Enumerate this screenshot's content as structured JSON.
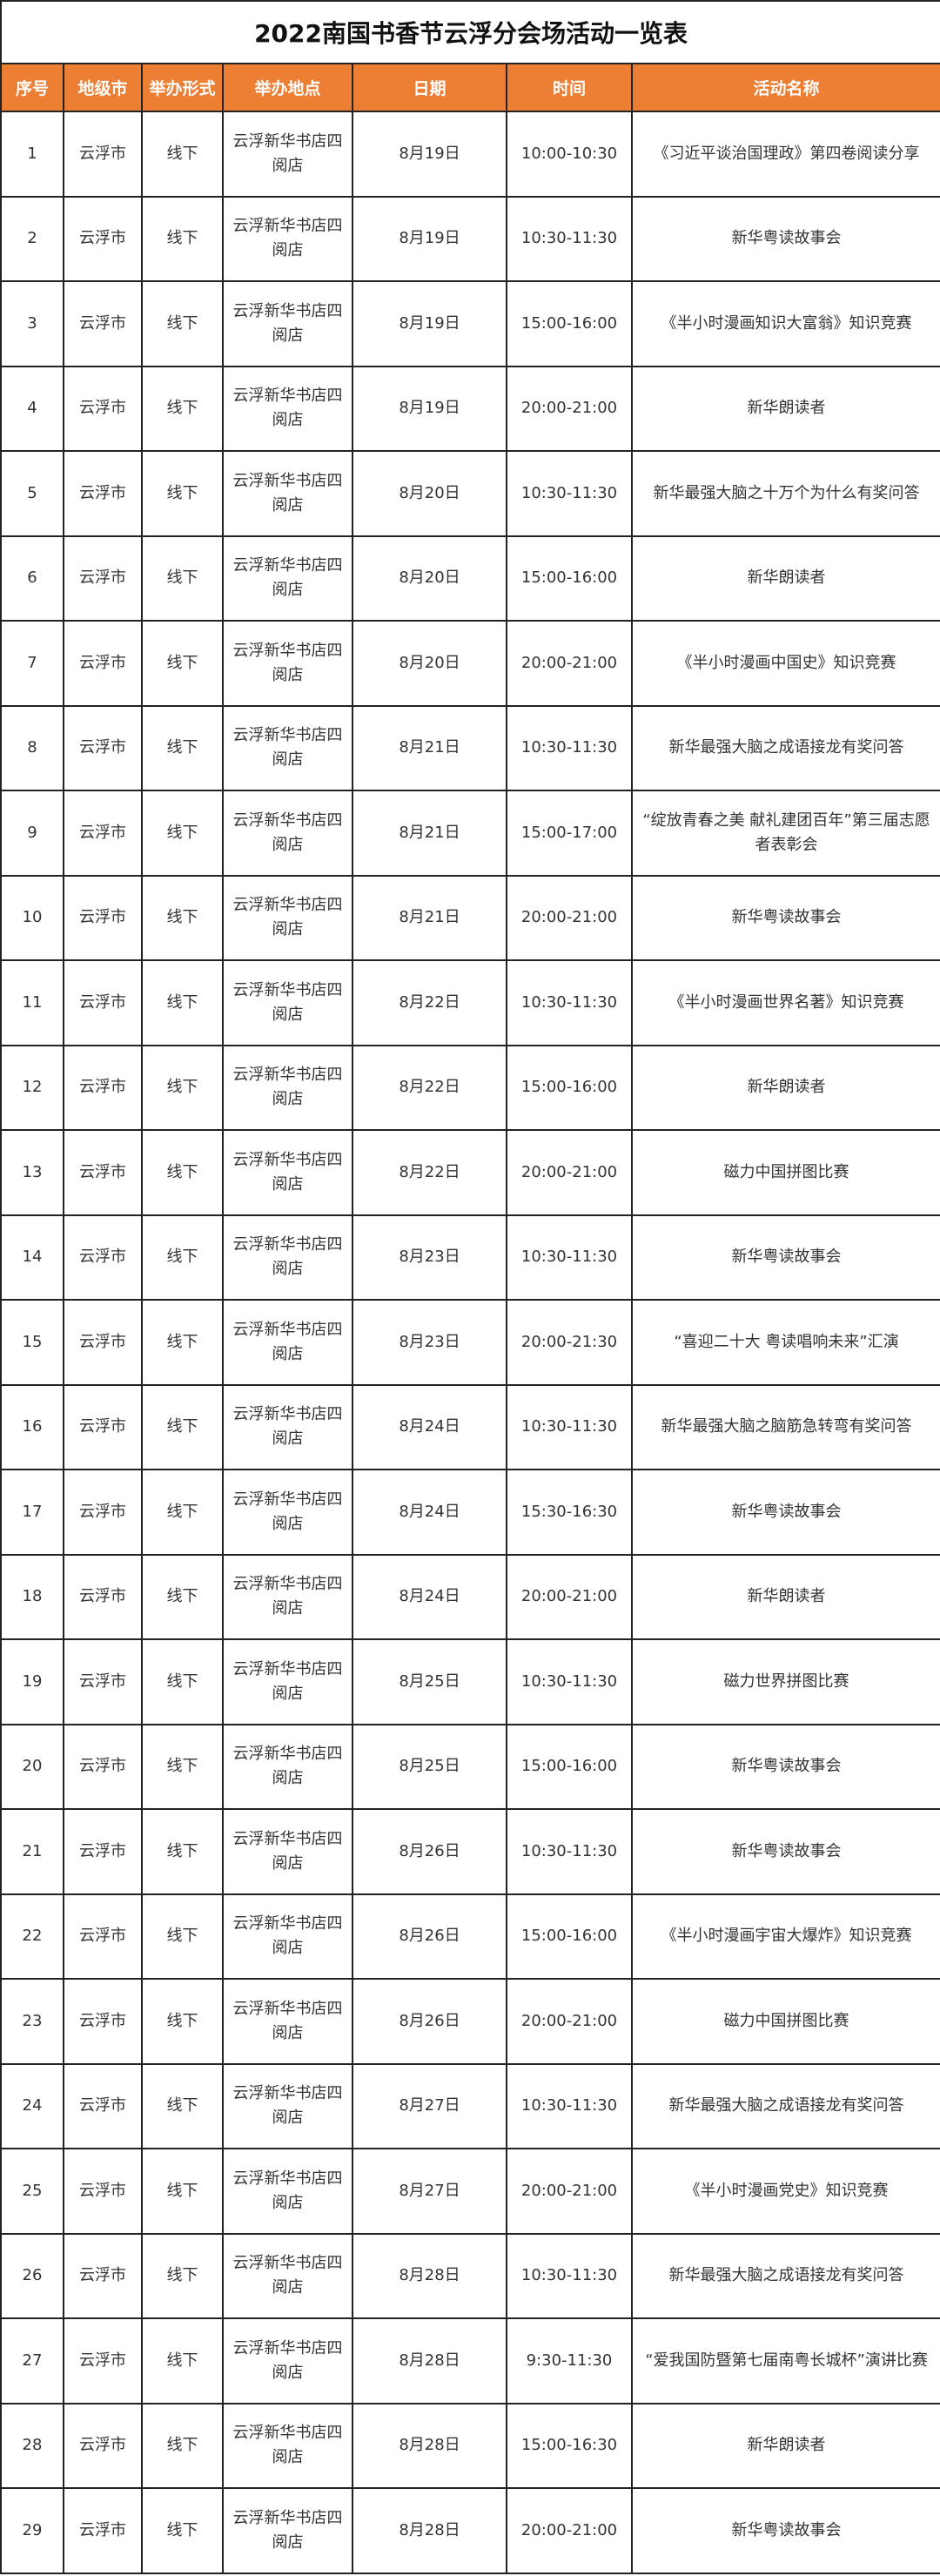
{
  "title": "2022南国书香节云浮分会场活动一览表",
  "header_color": "#EC7F34",
  "columns": [
    "序号",
    "地级市",
    "举办形式",
    "举办地点",
    "日期",
    "时间",
    "活动名称"
  ],
  "rows": [
    [
      "1",
      "云浮市",
      "线下",
      "云浮新华书店四阅店",
      "8月19日",
      "10:00-10:30",
      "《习近平谈治国理政》第四卷阅读分享"
    ],
    [
      "2",
      "云浮市",
      "线下",
      "云浮新华书店四阅店",
      "8月19日",
      "10:30-11:30",
      "新华粤读故事会"
    ],
    [
      "3",
      "云浮市",
      "线下",
      "云浮新华书店四阅店",
      "8月19日",
      "15:00-16:00",
      "《半小时漫画知识大富翁》知识竞赛"
    ],
    [
      "4",
      "云浮市",
      "线下",
      "云浮新华书店四阅店",
      "8月19日",
      "20:00-21:00",
      "新华朗读者"
    ],
    [
      "5",
      "云浮市",
      "线下",
      "云浮新华书店四阅店",
      "8月20日",
      "10:30-11:30",
      "新华最强大脑之十万个为什么有奖问答"
    ],
    [
      "6",
      "云浮市",
      "线下",
      "云浮新华书店四阅店",
      "8月20日",
      "15:00-16:00",
      "新华朗读者"
    ],
    [
      "7",
      "云浮市",
      "线下",
      "云浮新华书店四阅店",
      "8月20日",
      "20:00-21:00",
      "《半小时漫画中国史》知识竞赛"
    ],
    [
      "8",
      "云浮市",
      "线下",
      "云浮新华书店四阅店",
      "8月21日",
      "10:30-11:30",
      "新华最强大脑之成语接龙有奖问答"
    ],
    [
      "9",
      "云浮市",
      "线下",
      "云浮新华书店四阅店",
      "8月21日",
      "15:00-17:00",
      "“绽放青春之美 献礼建团百年”第三届志愿者表彰会"
    ],
    [
      "10",
      "云浮市",
      "线下",
      "云浮新华书店四阅店",
      "8月21日",
      "20:00-21:00",
      "新华粤读故事会"
    ],
    [
      "11",
      "云浮市",
      "线下",
      "云浮新华书店四阅店",
      "8月22日",
      "10:30-11:30",
      "《半小时漫画世界名著》知识竞赛"
    ],
    [
      "12",
      "云浮市",
      "线下",
      "云浮新华书店四阅店",
      "8月22日",
      "15:00-16:00",
      "新华朗读者"
    ],
    [
      "13",
      "云浮市",
      "线下",
      "云浮新华书店四阅店",
      "8月22日",
      "20:00-21:00",
      "磁力中国拼图比赛"
    ],
    [
      "14",
      "云浮市",
      "线下",
      "云浮新华书店四阅店",
      "8月23日",
      "10:30-11:30",
      "新华粤读故事会"
    ],
    [
      "15",
      "云浮市",
      "线下",
      "云浮新华书店四阅店",
      "8月23日",
      "20:00-21:30",
      "“喜迎二十大 粤读唱响未来”汇演"
    ],
    [
      "16",
      "云浮市",
      "线下",
      "云浮新华书店四阅店",
      "8月24日",
      "10:30-11:30",
      "新华最强大脑之脑筋急转弯有奖问答"
    ],
    [
      "17",
      "云浮市",
      "线下",
      "云浮新华书店四阅店",
      "8月24日",
      "15:30-16:30",
      "新华粤读故事会"
    ],
    [
      "18",
      "云浮市",
      "线下",
      "云浮新华书店四阅店",
      "8月24日",
      "20:00-21:00",
      "新华朗读者"
    ],
    [
      "19",
      "云浮市",
      "线下",
      "云浮新华书店四阅店",
      "8月25日",
      "10:30-11:30",
      "磁力世界拼图比赛"
    ],
    [
      "20",
      "云浮市",
      "线下",
      "云浮新华书店四阅店",
      "8月25日",
      "15:00-16:00",
      "新华粤读故事会"
    ],
    [
      "21",
      "云浮市",
      "线下",
      "云浮新华书店四阅店",
      "8月26日",
      "10:30-11:30",
      "新华粤读故事会"
    ],
    [
      "22",
      "云浮市",
      "线下",
      "云浮新华书店四阅店",
      "8月26日",
      "15:00-16:00",
      "《半小时漫画宇宙大爆炸》知识竞赛"
    ],
    [
      "23",
      "云浮市",
      "线下",
      "云浮新华书店四阅店",
      "8月26日",
      "20:00-21:00",
      "磁力中国拼图比赛"
    ],
    [
      "24",
      "云浮市",
      "线下",
      "云浮新华书店四阅店",
      "8月27日",
      "10:30-11:30",
      "新华最强大脑之成语接龙有奖问答"
    ],
    [
      "25",
      "云浮市",
      "线下",
      "云浮新华书店四阅店",
      "8月27日",
      "20:00-21:00",
      "《半小时漫画党史》知识竞赛"
    ],
    [
      "26",
      "云浮市",
      "线下",
      "云浮新华书店四阅店",
      "8月28日",
      "10:30-11:30",
      "新华最强大脑之成语接龙有奖问答"
    ],
    [
      "27",
      "云浮市",
      "线下",
      "云浮新华书店四阅店",
      "8月28日",
      "9:30-11:30",
      "“爱我国防暨第七届南粤长城杯”演讲比赛"
    ],
    [
      "28",
      "云浮市",
      "线下",
      "云浮新华书店四阅店",
      "8月28日",
      "15:00-16:30",
      "新华朗读者"
    ],
    [
      "29",
      "云浮市",
      "线下",
      "云浮新华书店四阅店",
      "8月28日",
      "20:00-21:00",
      "新华粤读故事会"
    ]
  ]
}
